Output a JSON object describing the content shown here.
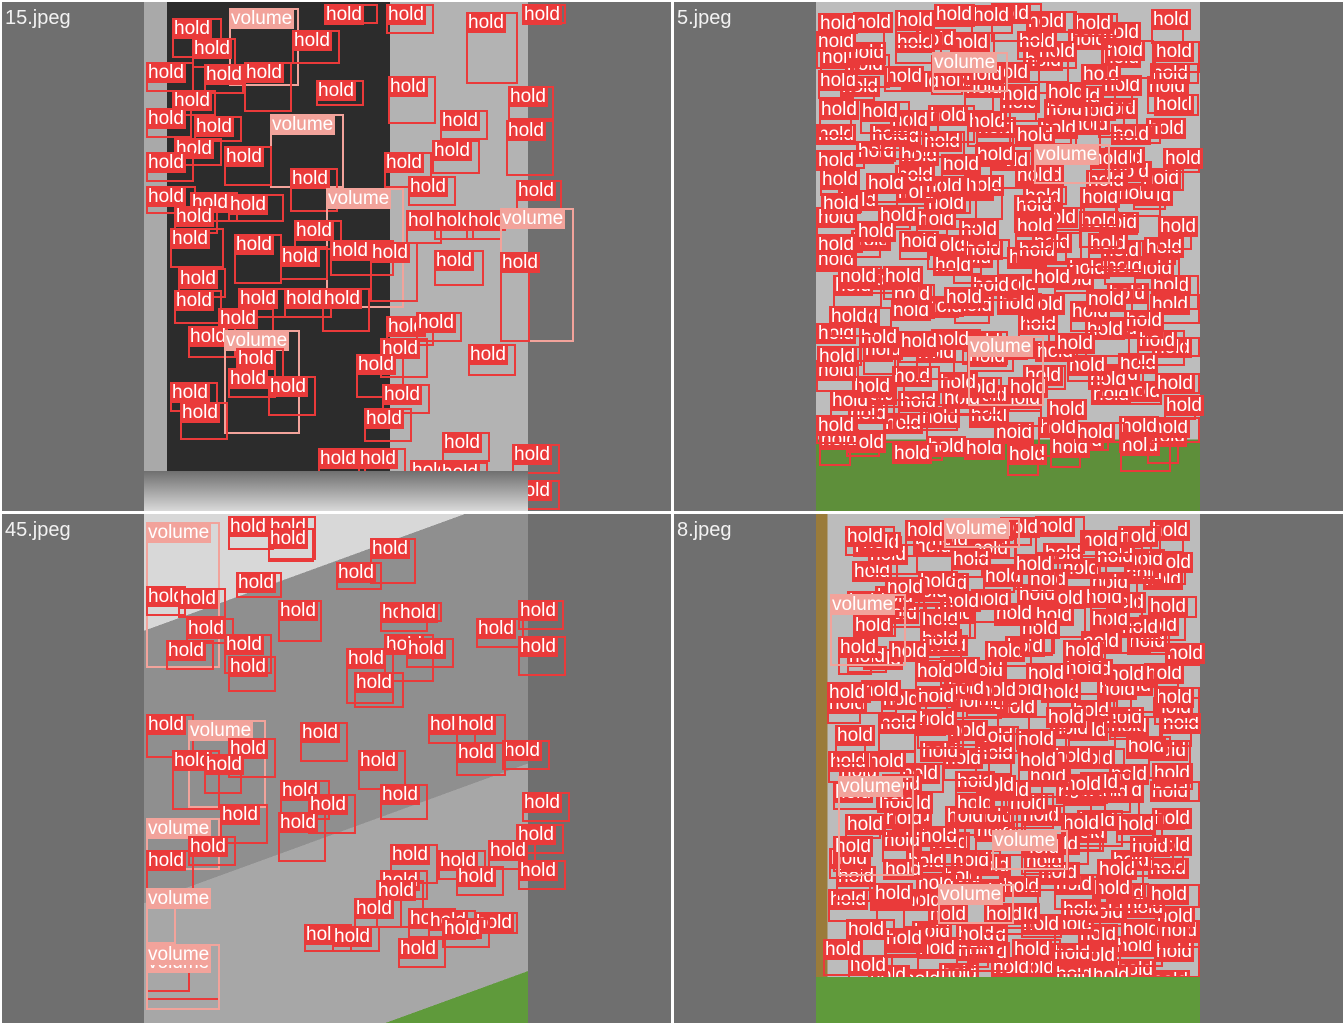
{
  "panels": [
    {
      "filename": "15.jpeg"
    },
    {
      "filename": "5.jpeg"
    },
    {
      "filename": "45.jpeg"
    },
    {
      "filename": "8.jpeg"
    }
  ],
  "labels": {
    "hold": "hold",
    "volume": "volume"
  },
  "colors": {
    "background": "#ffffff",
    "panel": "#6f6f6f",
    "hold_box": "#ea3a3a",
    "volume_box": "#f2a39b",
    "label_text": "#ffffff"
  }
}
